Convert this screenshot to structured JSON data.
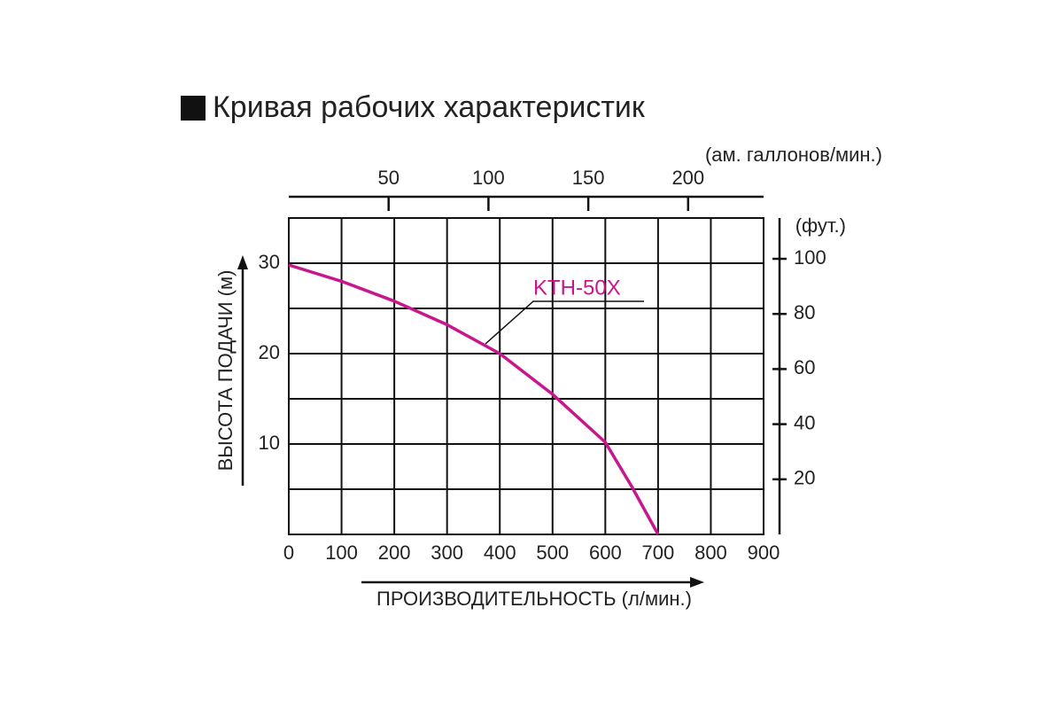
{
  "chart_data": {
    "type": "line",
    "title": "Кривая рабочих характеристик",
    "x_label": "ПРОИЗВОДИТЕЛЬНОСТЬ (л/мин.)",
    "y_label": "ВЫСОТА ПОДАЧИ (м)",
    "x2_label": "(ам. галлонов/мин.)",
    "y2_label": "(фут.)",
    "x": [
      0,
      100,
      200,
      300,
      400,
      500,
      600,
      650,
      700
    ],
    "series": [
      {
        "name": "KTH-50X",
        "color": "#c8168c",
        "values": [
          29.8,
          28.0,
          25.8,
          23.2,
          20.0,
          15.5,
          10.2,
          5.3,
          0
        ]
      }
    ],
    "xlim": [
      0,
      900
    ],
    "xticks": [
      0,
      100,
      200,
      300,
      400,
      500,
      600,
      700,
      800,
      900
    ],
    "ylim": [
      0,
      35
    ],
    "yticks": [
      10,
      20,
      30
    ],
    "x2lim": [
      0,
      237.8
    ],
    "x2ticks": [
      50,
      100,
      150,
      200
    ],
    "y2lim": [
      0,
      114.8
    ],
    "y2ticks": [
      20,
      40,
      60,
      80,
      100
    ],
    "grid": true
  }
}
